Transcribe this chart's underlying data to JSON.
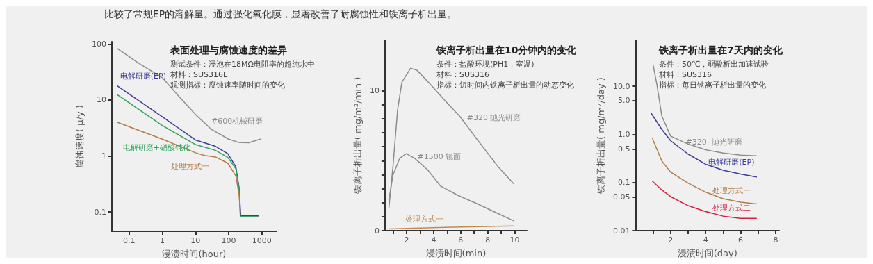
{
  "chart_data": [
    {
      "type": "line",
      "subtitle": "比较了常规EP的溶解量。通过强化氧化膜，显著改善了耐腐蚀性和铁离子析出量。",
      "title": "表面处理与腐蚀速度的差异",
      "annotations": [
        "测试条件：浸泡在18MΩ电阻率的超纯水中",
        "材料：SUS316L",
        "观测指标：腐蚀速率随时间的变化"
      ],
      "xlabel": "浸渍时间(hour)",
      "ylabel": "腐蚀速度( μ/y )",
      "log": "xy",
      "xlim": [
        0.03,
        2800
      ],
      "xticks": [
        0.1,
        1,
        10,
        100,
        1000
      ],
      "ylim": [
        0.045,
        110
      ],
      "yticks": [
        0.1,
        1,
        10,
        100
      ],
      "grid": false,
      "series": [
        {
          "name": "#600机械研磨",
          "color": "#8c8c8c",
          "x": [
            0.044,
            0.2,
            1,
            3,
            10,
            30,
            100,
            200,
            400,
            900
          ],
          "values": [
            83,
            45,
            25,
            12,
            5.5,
            3.0,
            2.0,
            1.75,
            1.72,
            2.0
          ]
        },
        {
          "name": "电解研磨(EP)",
          "color": "#3b3b9c",
          "x": [
            0.044,
            1,
            10,
            40,
            95,
            165,
            207,
            232,
            780
          ],
          "values": [
            17.8,
            5.0,
            1.93,
            1.49,
            1.09,
            0.64,
            0.27,
            0.085,
            0.085
          ]
        },
        {
          "name": "电解研磨+硝酸钝化",
          "color": "#2ea35c",
          "x": [
            0.044,
            1,
            10,
            40,
            95,
            165,
            207,
            225,
            780
          ],
          "values": [
            12.4,
            3.5,
            1.6,
            1.26,
            0.94,
            0.59,
            0.25,
            0.082,
            0.082
          ]
        },
        {
          "name": "处理方式一",
          "color": "#b27b45",
          "x": [
            0.044,
            1,
            10,
            18.7,
            40,
            95,
            165,
            207,
            225
          ],
          "values": [
            4.0,
            2.0,
            1.14,
            1.02,
            0.96,
            0.74,
            0.44,
            0.2,
            0.096
          ]
        }
      ]
    },
    {
      "type": "line",
      "title": "铁离子析出量在10分钟内的变化",
      "annotations": [
        "条件：盐酸环境(PH1，室温)",
        "材料：SUS316",
        "指标：短时间内铁离子析出量的动态变化"
      ],
      "xlabel": "浸渍时间(min)",
      "ylabel": "铁离子析出量( mg/m²/min )",
      "xlim": [
        0.4,
        10.9
      ],
      "xticks": [
        {
          "value": 1,
          "label": null
        },
        2,
        {
          "value": 3,
          "label": null
        },
        4,
        {
          "value": 5,
          "label": null
        },
        6,
        {
          "value": 7,
          "label": null
        },
        8,
        {
          "value": 9,
          "label": null
        },
        10
      ],
      "ylim": [
        0,
        13.6
      ],
      "yticks": [
        0,
        {
          "value": 1,
          "label": null
        },
        {
          "value": 2,
          "label": null
        },
        {
          "value": 3,
          "label": null
        },
        {
          "value": 4,
          "label": null
        },
        {
          "value": 5,
          "label": null
        },
        {
          "value": 6,
          "label": null
        },
        {
          "value": 7,
          "label": null
        },
        {
          "value": 8,
          "label": null
        },
        {
          "value": 9,
          "label": null
        },
        10
      ],
      "grid": false,
      "series": [
        {
          "name": "#320 抛光研磨",
          "color": "#8c8c8c",
          "x": [
            0.69,
            1.0,
            1.33,
            1.65,
            2.29,
            2.77,
            3.72,
            4.84,
            5.95,
            7.23,
            8.83,
            9.94
          ],
          "values": [
            1.6,
            4.67,
            8.6,
            10.6,
            11.6,
            11.46,
            10.5,
            9.3,
            8.15,
            6.5,
            4.5,
            3.34
          ]
        },
        {
          "name": "#1500 镜面",
          "color": "#8c8c8c",
          "x": [
            0.69,
            1.0,
            1.49,
            1.97,
            2.6,
            3.56,
            4.52,
            5.8,
            7.39,
            8.83,
            9.94
          ],
          "values": [
            2.2,
            4.0,
            5.17,
            5.5,
            5.17,
            4.34,
            3.18,
            2.52,
            1.85,
            1.19,
            0.7
          ]
        },
        {
          "name": "处理方式一",
          "color": "#c08a55",
          "x": [
            0.69,
            4.84,
            9.94
          ],
          "values": [
            0.12,
            0.23,
            0.33
          ]
        }
      ]
    },
    {
      "type": "line",
      "title": "铁离子析出量在7天内的变化",
      "annotations": [
        "条件：50℃，弱酸析出加速试验",
        "材料：SUS316",
        "指标：每日铁离子析出量的变化"
      ],
      "xlabel": "浸渍时间(day)",
      "ylabel": "铁离子析出量( mg/m²/day )",
      "log": true,
      "xlim": [
        0,
        8.2
      ],
      "xticks": [
        {
          "value": 1,
          "label": null
        },
        2,
        {
          "value": 3,
          "label": null
        },
        4,
        {
          "value": 5,
          "label": null
        },
        6,
        {
          "value": 7,
          "label": null
        },
        8
      ],
      "ylim": [
        0.01,
        90
      ],
      "yticks": [
        0.01,
        0.05,
        0.1,
        0.5,
        {
          "value": 1,
          "label": "1.0"
        },
        {
          "value": 5,
          "label": "5.0"
        },
        {
          "value": 10,
          "label": "10.0"
        }
      ],
      "grid": false,
      "series": [
        {
          "name": "#320  抛光研磨",
          "color": "#8c8c8c",
          "x": [
            1,
            1.22,
            1.5,
            2,
            3,
            4,
            5,
            6,
            6.9
          ],
          "values": [
            28,
            10.8,
            2.4,
            0.92,
            0.63,
            0.48,
            0.41,
            0.37,
            0.36
          ]
        },
        {
          "name": "电解研磨(EP)",
          "color": "#3b3b9c",
          "x": [
            0.91,
            1.5,
            2,
            3,
            4,
            5,
            6,
            6.9
          ],
          "values": [
            2.68,
            1.27,
            0.74,
            0.39,
            0.24,
            0.18,
            0.15,
            0.13
          ]
        },
        {
          "name": "处理方式一",
          "color": "#b27b45",
          "x": [
            0.97,
            1.5,
            2,
            3,
            4,
            5,
            6,
            6.9
          ],
          "values": [
            0.81,
            0.28,
            0.165,
            0.097,
            0.063,
            0.046,
            0.039,
            0.036
          ]
        },
        {
          "name": "处理方式二",
          "color": "#d42040",
          "x": [
            0.97,
            1.5,
            2,
            3,
            4,
            5,
            6,
            6.9
          ],
          "values": [
            0.106,
            0.07,
            0.051,
            0.033,
            0.025,
            0.02,
            0.018,
            0.018
          ]
        }
      ]
    }
  ]
}
